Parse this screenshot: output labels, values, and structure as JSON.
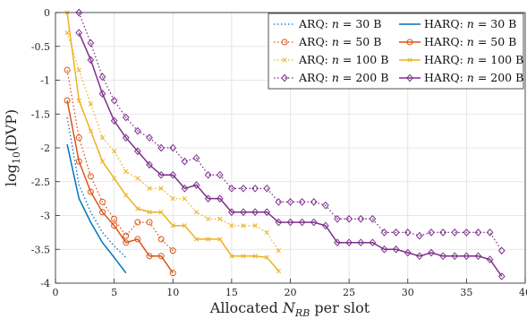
{
  "chart_data": {
    "type": "line",
    "xlabel": "Allocated N_RB per slot",
    "ylabel": "log10(DVP)",
    "xlim": [
      0,
      40
    ],
    "ylim": [
      -4,
      0
    ],
    "xticks": [
      0,
      5,
      10,
      15,
      20,
      25,
      30,
      35,
      40
    ],
    "yticks": [
      0,
      -0.5,
      -1,
      -1.5,
      -2,
      -2.5,
      -3,
      -3.5,
      -4
    ],
    "grid": true,
    "legend_position": "top-right",
    "series": [
      {
        "name": "ARQ: n = 30 B",
        "color": "#0072BD",
        "dash": "dotted",
        "marker": "none",
        "x": [
          1,
          2,
          3,
          4,
          5,
          6
        ],
        "y": [
          -1.55,
          -2.55,
          -2.95,
          -3.25,
          -3.45,
          -3.62
        ]
      },
      {
        "name": "ARQ: n = 50 B",
        "color": "#D95319",
        "dash": "dotted",
        "marker": "circle",
        "x": [
          1,
          2,
          3,
          4,
          5,
          6,
          7,
          8,
          9,
          10
        ],
        "y": [
          -0.85,
          -1.85,
          -2.42,
          -2.8,
          -3.05,
          -3.3,
          -3.1,
          -3.1,
          -3.35,
          -3.52
        ]
      },
      {
        "name": "ARQ: n = 100 B",
        "color": "#EDB120",
        "dash": "dotted",
        "marker": "x",
        "x": [
          1,
          2,
          3,
          4,
          5,
          6,
          7,
          8,
          9,
          10,
          11,
          12,
          13,
          14,
          15,
          16,
          17,
          18,
          19
        ],
        "y": [
          -0.3,
          -0.85,
          -1.35,
          -1.85,
          -2.05,
          -2.35,
          -2.45,
          -2.6,
          -2.6,
          -2.75,
          -2.75,
          -2.95,
          -3.05,
          -3.05,
          -3.15,
          -3.15,
          -3.15,
          -3.25,
          -3.52
        ]
      },
      {
        "name": "ARQ: n = 200 B",
        "color": "#7E2F8E",
        "dash": "dotted",
        "marker": "diamond",
        "x": [
          2,
          3,
          4,
          5,
          6,
          7,
          8,
          9,
          10,
          11,
          12,
          13,
          14,
          15,
          16,
          17,
          18,
          19,
          20,
          21,
          22,
          23,
          24,
          25,
          26,
          27,
          28,
          29,
          30,
          31,
          32,
          33,
          34,
          35,
          36,
          37,
          38
        ],
        "y": [
          0,
          -0.45,
          -0.95,
          -1.3,
          -1.55,
          -1.75,
          -1.85,
          -2.0,
          -2.0,
          -2.2,
          -2.15,
          -2.4,
          -2.4,
          -2.6,
          -2.6,
          -2.6,
          -2.6,
          -2.8,
          -2.8,
          -2.8,
          -2.8,
          -2.85,
          -3.05,
          -3.05,
          -3.05,
          -3.05,
          -3.25,
          -3.25,
          -3.25,
          -3.3,
          -3.25,
          -3.25,
          -3.25,
          -3.25,
          -3.25,
          -3.25,
          -3.52
        ]
      },
      {
        "name": "HARQ: n = 30 B",
        "color": "#0072BD",
        "dash": "solid",
        "marker": "none",
        "x": [
          1,
          2,
          3,
          4,
          5,
          6
        ],
        "y": [
          -1.95,
          -2.75,
          -3.1,
          -3.4,
          -3.62,
          -3.85
        ]
      },
      {
        "name": "HARQ: n = 50 B",
        "color": "#D95319",
        "dash": "solid",
        "marker": "circle",
        "x": [
          1,
          2,
          3,
          4,
          5,
          6,
          7,
          8,
          9,
          10
        ],
        "y": [
          -1.3,
          -2.2,
          -2.65,
          -2.95,
          -3.15,
          -3.4,
          -3.35,
          -3.6,
          -3.6,
          -3.85
        ]
      },
      {
        "name": "HARQ: n = 100 B",
        "color": "#EDB120",
        "dash": "solid",
        "marker": "x",
        "x": [
          1,
          2,
          3,
          4,
          5,
          6,
          7,
          8,
          9,
          10,
          11,
          12,
          13,
          14,
          15,
          16,
          17,
          18,
          19
        ],
        "y": [
          0,
          -1.3,
          -1.75,
          -2.2,
          -2.45,
          -2.7,
          -2.9,
          -2.95,
          -2.95,
          -3.15,
          -3.15,
          -3.35,
          -3.35,
          -3.35,
          -3.6,
          -3.6,
          -3.6,
          -3.62,
          -3.82
        ]
      },
      {
        "name": "HARQ: n = 200 B",
        "color": "#7E2F8E",
        "dash": "solid",
        "marker": "diamond",
        "x": [
          2,
          3,
          4,
          5,
          6,
          7,
          8,
          9,
          10,
          11,
          12,
          13,
          14,
          15,
          16,
          17,
          18,
          19,
          20,
          21,
          22,
          23,
          24,
          25,
          26,
          27,
          28,
          29,
          30,
          31,
          32,
          33,
          34,
          35,
          36,
          37,
          38
        ],
        "y": [
          -0.3,
          -0.7,
          -1.2,
          -1.6,
          -1.85,
          -2.05,
          -2.25,
          -2.4,
          -2.4,
          -2.6,
          -2.55,
          -2.75,
          -2.75,
          -2.95,
          -2.95,
          -2.95,
          -2.95,
          -3.1,
          -3.1,
          -3.1,
          -3.1,
          -3.15,
          -3.4,
          -3.4,
          -3.4,
          -3.4,
          -3.5,
          -3.5,
          -3.55,
          -3.6,
          -3.55,
          -3.6,
          -3.6,
          -3.6,
          -3.6,
          -3.65,
          -3.9
        ]
      }
    ]
  }
}
